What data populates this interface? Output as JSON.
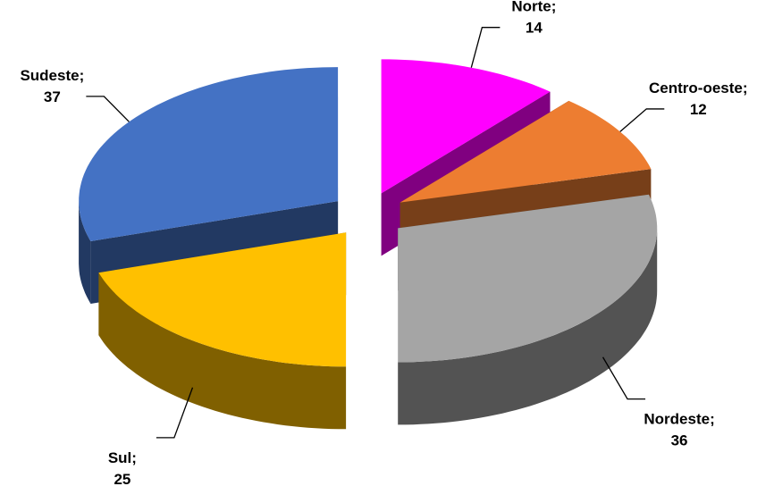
{
  "chart_data": {
    "type": "pie3d",
    "categories": [
      "Norte",
      "Centro-oeste",
      "Nordeste",
      "Sul",
      "Sudeste"
    ],
    "values": [
      14,
      12,
      36,
      25,
      37
    ],
    "colors": [
      "#ff00ff",
      "#ed7d31",
      "#a5a5a5",
      "#ffc000",
      "#4472c4"
    ],
    "label_separator": ";"
  }
}
